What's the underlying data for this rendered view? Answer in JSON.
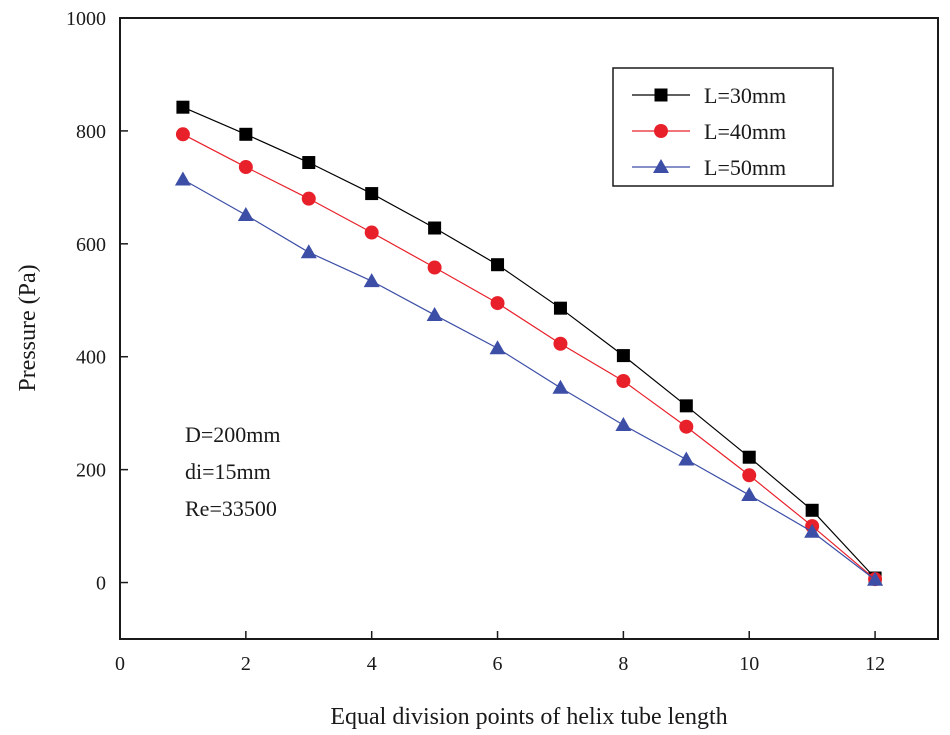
{
  "chart_data": {
    "type": "line",
    "title": "",
    "xlabel": "Equal division points of helix tube length",
    "ylabel": "Pressure (Pa)",
    "xlim": [
      0,
      13
    ],
    "ylim": [
      -100,
      1000
    ],
    "xticks": [
      0,
      2,
      4,
      6,
      8,
      10,
      12
    ],
    "yticks": [
      0,
      200,
      400,
      600,
      800,
      1000
    ],
    "grid": false,
    "legend_position": "top-right",
    "x": [
      1,
      2,
      3,
      4,
      5,
      6,
      7,
      8,
      9,
      10,
      11,
      12
    ],
    "series": [
      {
        "name": "L=30mm",
        "marker": "square",
        "color": "#000000",
        "values": [
          842,
          794,
          744,
          689,
          628,
          563,
          486,
          402,
          313,
          222,
          128,
          8
        ]
      },
      {
        "name": "L=40mm",
        "marker": "circle",
        "color": "#e8202a",
        "values": [
          794,
          736,
          680,
          620,
          558,
          495,
          423,
          357,
          276,
          190,
          100,
          6
        ]
      },
      {
        "name": "L=50mm",
        "marker": "triangle",
        "color": "#3c4ea6",
        "values": [
          714,
          651,
          585,
          534,
          474,
          415,
          345,
          279,
          218,
          155,
          90,
          5
        ]
      }
    ],
    "annotations": [
      "D=200mm",
      "di=15mm",
      "Re=33500"
    ]
  }
}
